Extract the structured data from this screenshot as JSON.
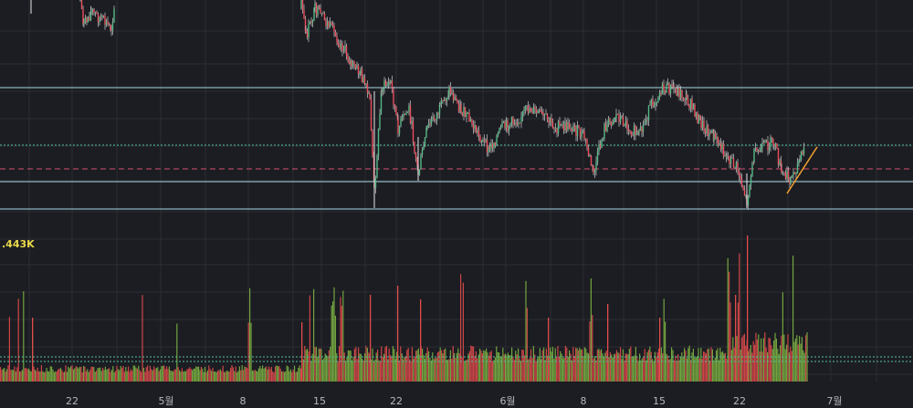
{
  "chart_data": {
    "type": "candlestick",
    "x_axis": {
      "tick_labels": [
        "22",
        "5월",
        "8",
        "15",
        "22",
        "6월",
        "8",
        "15",
        "22",
        "7월"
      ]
    },
    "volume_panel": {
      "label": ".443K"
    },
    "price_series": {
      "segments": [
        {
          "from_day": 0,
          "to_day": 1,
          "start_level": 0.99,
          "end_level": 0.99
        },
        {
          "from_day": 4.5,
          "to_day": 10.5,
          "start_level": 0.97,
          "end_level": 0.93
        },
        {
          "from_day": 20.5,
          "to_day": 35,
          "start_level": 0.99,
          "end_level": 0.72
        },
        {
          "from_day": 35,
          "to_day": 80,
          "start_level": 0.72,
          "end_level": 0.6
        }
      ]
    },
    "volume_series": {
      "baseline_level": "low",
      "spike_days": [
        2,
        27,
        34,
        36,
        37,
        50,
        57,
        64,
        72,
        79,
        80
      ]
    },
    "horizontal_levels": [
      {
        "kind": "solid",
        "color": "#a9d6e5"
      },
      {
        "kind": "dotted",
        "color": "#4fc3a1"
      },
      {
        "kind": "dashed",
        "color": "#d64f73"
      },
      {
        "kind": "solid",
        "color": "#a9d6e5"
      },
      {
        "kind": "solid",
        "color": "#a9d6e5"
      }
    ],
    "trendline": {
      "color": "#f0a030"
    },
    "colors": {
      "up": "#53b987",
      "down": "#eb4d5c",
      "wick": "#e8e8e8",
      "volume_up": "#7cb342",
      "volume_down": "#e04b4b",
      "grid": "#2b2d33",
      "background": "#1c1d22"
    }
  }
}
